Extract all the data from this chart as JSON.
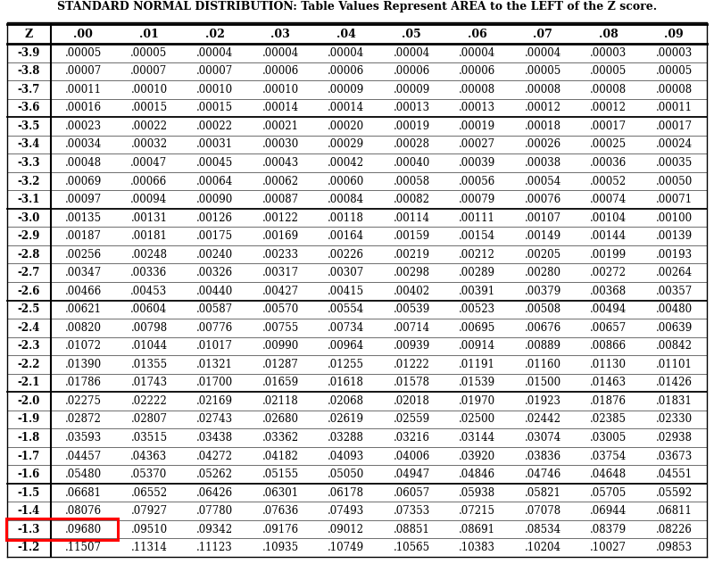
{
  "title": "STANDARD NORMAL DISTRIBUTION: Table Values Represent AREA to the LEFT of the Z score.",
  "columns": [
    "Z",
    ".00",
    ".01",
    ".02",
    ".03",
    ".04",
    ".05",
    ".06",
    ".07",
    ".08",
    ".09"
  ],
  "rows": [
    [
      "-3.9",
      ".00005",
      ".00005",
      ".00004",
      ".00004",
      ".00004",
      ".00004",
      ".00004",
      ".00004",
      ".00003",
      ".00003"
    ],
    [
      "-3.8",
      ".00007",
      ".00007",
      ".00007",
      ".00006",
      ".00006",
      ".00006",
      ".00006",
      ".00005",
      ".00005",
      ".00005"
    ],
    [
      "-3.7",
      ".00011",
      ".00010",
      ".00010",
      ".00010",
      ".00009",
      ".00009",
      ".00008",
      ".00008",
      ".00008",
      ".00008"
    ],
    [
      "-3.6",
      ".00016",
      ".00015",
      ".00015",
      ".00014",
      ".00014",
      ".00013",
      ".00013",
      ".00012",
      ".00012",
      ".00011"
    ],
    [
      "-3.5",
      ".00023",
      ".00022",
      ".00022",
      ".00021",
      ".00020",
      ".00019",
      ".00019",
      ".00018",
      ".00017",
      ".00017"
    ],
    [
      "-3.4",
      ".00034",
      ".00032",
      ".00031",
      ".00030",
      ".00029",
      ".00028",
      ".00027",
      ".00026",
      ".00025",
      ".00024"
    ],
    [
      "-3.3",
      ".00048",
      ".00047",
      ".00045",
      ".00043",
      ".00042",
      ".00040",
      ".00039",
      ".00038",
      ".00036",
      ".00035"
    ],
    [
      "-3.2",
      ".00069",
      ".00066",
      ".00064",
      ".00062",
      ".00060",
      ".00058",
      ".00056",
      ".00054",
      ".00052",
      ".00050"
    ],
    [
      "-3.1",
      ".00097",
      ".00094",
      ".00090",
      ".00087",
      ".00084",
      ".00082",
      ".00079",
      ".00076",
      ".00074",
      ".00071"
    ],
    [
      "-3.0",
      ".00135",
      ".00131",
      ".00126",
      ".00122",
      ".00118",
      ".00114",
      ".00111",
      ".00107",
      ".00104",
      ".00100"
    ],
    [
      "-2.9",
      ".00187",
      ".00181",
      ".00175",
      ".00169",
      ".00164",
      ".00159",
      ".00154",
      ".00149",
      ".00144",
      ".00139"
    ],
    [
      "-2.8",
      ".00256",
      ".00248",
      ".00240",
      ".00233",
      ".00226",
      ".00219",
      ".00212",
      ".00205",
      ".00199",
      ".00193"
    ],
    [
      "-2.7",
      ".00347",
      ".00336",
      ".00326",
      ".00317",
      ".00307",
      ".00298",
      ".00289",
      ".00280",
      ".00272",
      ".00264"
    ],
    [
      "-2.6",
      ".00466",
      ".00453",
      ".00440",
      ".00427",
      ".00415",
      ".00402",
      ".00391",
      ".00379",
      ".00368",
      ".00357"
    ],
    [
      "-2.5",
      ".00621",
      ".00604",
      ".00587",
      ".00570",
      ".00554",
      ".00539",
      ".00523",
      ".00508",
      ".00494",
      ".00480"
    ],
    [
      "-2.4",
      ".00820",
      ".00798",
      ".00776",
      ".00755",
      ".00734",
      ".00714",
      ".00695",
      ".00676",
      ".00657",
      ".00639"
    ],
    [
      "-2.3",
      ".01072",
      ".01044",
      ".01017",
      ".00990",
      ".00964",
      ".00939",
      ".00914",
      ".00889",
      ".00866",
      ".00842"
    ],
    [
      "-2.2",
      ".01390",
      ".01355",
      ".01321",
      ".01287",
      ".01255",
      ".01222",
      ".01191",
      ".01160",
      ".01130",
      ".01101"
    ],
    [
      "-2.1",
      ".01786",
      ".01743",
      ".01700",
      ".01659",
      ".01618",
      ".01578",
      ".01539",
      ".01500",
      ".01463",
      ".01426"
    ],
    [
      "-2.0",
      ".02275",
      ".02222",
      ".02169",
      ".02118",
      ".02068",
      ".02018",
      ".01970",
      ".01923",
      ".01876",
      ".01831"
    ],
    [
      "-1.9",
      ".02872",
      ".02807",
      ".02743",
      ".02680",
      ".02619",
      ".02559",
      ".02500",
      ".02442",
      ".02385",
      ".02330"
    ],
    [
      "-1.8",
      ".03593",
      ".03515",
      ".03438",
      ".03362",
      ".03288",
      ".03216",
      ".03144",
      ".03074",
      ".03005",
      ".02938"
    ],
    [
      "-1.7",
      ".04457",
      ".04363",
      ".04272",
      ".04182",
      ".04093",
      ".04006",
      ".03920",
      ".03836",
      ".03754",
      ".03673"
    ],
    [
      "-1.6",
      ".05480",
      ".05370",
      ".05262",
      ".05155",
      ".05050",
      ".04947",
      ".04846",
      ".04746",
      ".04648",
      ".04551"
    ],
    [
      "-1.5",
      ".06681",
      ".06552",
      ".06426",
      ".06301",
      ".06178",
      ".06057",
      ".05938",
      ".05821",
      ".05705",
      ".05592"
    ],
    [
      "-1.4",
      ".08076",
      ".07927",
      ".07780",
      ".07636",
      ".07493",
      ".07353",
      ".07215",
      ".07078",
      ".06944",
      ".06811"
    ],
    [
      "-1.3",
      ".09680",
      ".09510",
      ".09342",
      ".09176",
      ".09012",
      ".08851",
      ".08691",
      ".08534",
      ".08379",
      ".08226"
    ],
    [
      "-1.2",
      ".11507",
      ".11314",
      ".11123",
      ".10935",
      ".10749",
      ".10565",
      ".10383",
      ".10204",
      ".10027",
      ".09853"
    ]
  ],
  "highlight_row": 26,
  "highlight_color": "#ff0000",
  "group_separators": [
    4,
    9,
    14,
    19,
    24
  ],
  "background_color": "#ffffff",
  "text_color": "#000000",
  "figsize": [
    8.0,
    6.32
  ],
  "dpi": 100
}
